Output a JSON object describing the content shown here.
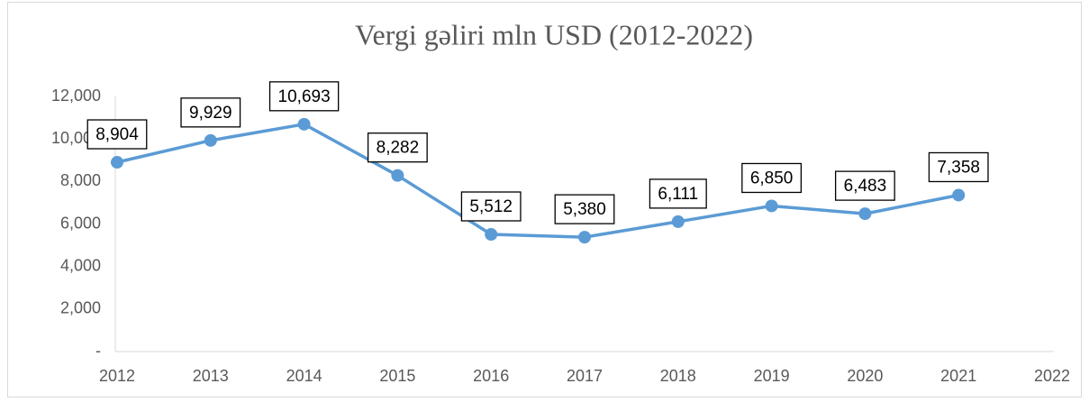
{
  "chart_data": {
    "type": "line",
    "title": "Vergi gəliri mln USD (2012-2022)",
    "categories": [
      "2012",
      "2013",
      "2014",
      "2015",
      "2016",
      "2017",
      "2018",
      "2019",
      "2020",
      "2021",
      "2022"
    ],
    "series": [
      {
        "name": "Vergi gəliri",
        "color": "#5b9bd5",
        "values": [
          8904,
          9929,
          10693,
          8282,
          5512,
          5380,
          6111,
          6850,
          6483,
          7358,
          null
        ],
        "value_labels": [
          "8,904",
          "9,929",
          "10,693",
          "8,282",
          "5,512",
          "5,380",
          "6,111",
          "6,850",
          "6,483",
          "7,358",
          null
        ]
      }
    ],
    "ylim": [
      0,
      12000
    ],
    "yticks": [
      {
        "value": 0,
        "label": "-"
      },
      {
        "value": 2000,
        "label": "2,000"
      },
      {
        "value": 4000,
        "label": "4,000"
      },
      {
        "value": 6000,
        "label": "6,000"
      },
      {
        "value": 8000,
        "label": "8,000"
      },
      {
        "value": 10000,
        "label": "10,000"
      },
      {
        "value": 12000,
        "label": "12,000"
      }
    ],
    "grid": false
  }
}
